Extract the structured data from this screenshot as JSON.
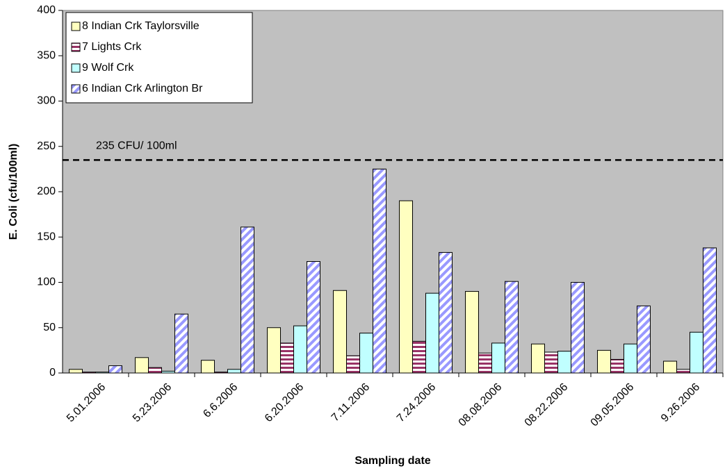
{
  "chart_data": {
    "type": "bar",
    "x_label": "Sampling date",
    "y_label": "E. Coli (cfu/100ml)",
    "categories": [
      "5.01.2006",
      "5.23.2006",
      "6.6.2006",
      "6.20.2006",
      "7.11.2006",
      "7.24.2006",
      "08.08.2006",
      "08.22.2006",
      "09.05.2006",
      "9.26.2006"
    ],
    "series": [
      {
        "name": "8 Indian Crk Taylorsville",
        "color": "#ffffc0",
        "pattern": "solid",
        "values": [
          4,
          17,
          14,
          50,
          91,
          190,
          90,
          32,
          25,
          13
        ]
      },
      {
        "name": "7 Lights Crk",
        "color": "#993366",
        "pattern": "horizontal",
        "values": [
          1,
          6,
          1,
          33,
          19,
          35,
          22,
          23,
          15,
          4
        ]
      },
      {
        "name": "9 Wolf Crk",
        "color": "#c0ffff",
        "pattern": "solid",
        "values": [
          1,
          2,
          4,
          52,
          44,
          88,
          33,
          24,
          32,
          45
        ]
      },
      {
        "name": "6 Indian Crk Arlington Br",
        "color": "#9999ff",
        "pattern": "diagonal",
        "values": [
          8,
          65,
          161,
          123,
          225,
          133,
          101,
          100,
          74,
          138
        ]
      }
    ],
    "reference_line": {
      "value": 235,
      "label": "235 CFU/ 100ml"
    },
    "ylim": [
      0,
      400
    ],
    "yticks": [
      0,
      50,
      100,
      150,
      200,
      250,
      300,
      350,
      400
    ],
    "background": "#c0c0c0",
    "legend": "top-left"
  }
}
